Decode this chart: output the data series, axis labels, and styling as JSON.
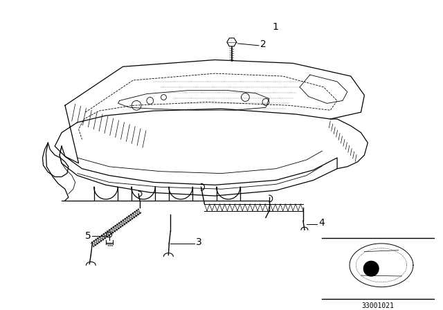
{
  "background_color": "#ffffff",
  "line_color": "#000000",
  "label_1": "1",
  "label_2": "2",
  "label_3": "3",
  "label_4": "4",
  "label_5": "5",
  "part_number": "33001021",
  "label_fontsize": 10,
  "part_number_fontsize": 7
}
